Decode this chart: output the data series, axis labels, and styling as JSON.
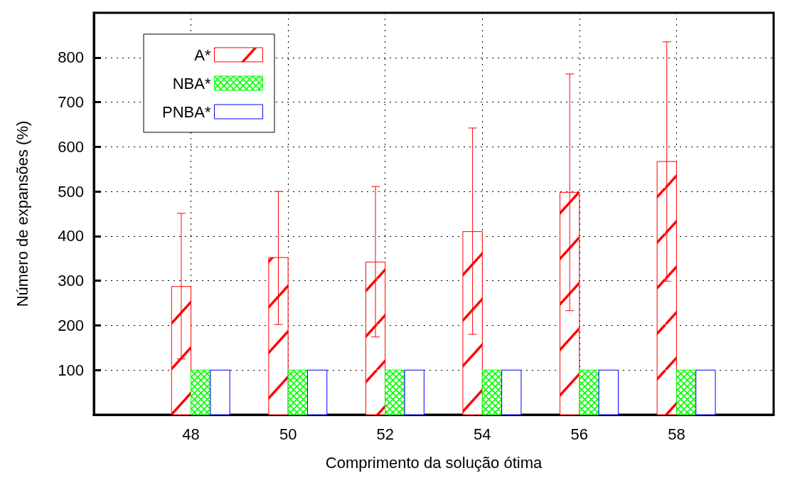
{
  "chart_data": {
    "type": "bar",
    "xlabel": "Comprimento da solução ótima",
    "ylabel": "Número de expansões (%)",
    "x": [
      48,
      50,
      52,
      54,
      56,
      58
    ],
    "xlim": [
      46,
      60
    ],
    "xticks": [
      48,
      50,
      52,
      54,
      56,
      58
    ],
    "ylim": [
      0,
      900
    ],
    "yticks": [
      100,
      200,
      300,
      400,
      500,
      600,
      700,
      800
    ],
    "grid": true,
    "legend": "top left",
    "series": [
      {
        "name": "A*",
        "color": "#ff0000",
        "values": [
          287,
          352,
          342,
          410,
          498,
          567
        ],
        "errors": [
          [
            125,
            451
          ],
          [
            202,
            500
          ],
          [
            174,
            511
          ],
          [
            180,
            642
          ],
          [
            233,
            763
          ],
          [
            299,
            835
          ]
        ]
      },
      {
        "name": "NBA*",
        "color": "#00ff00",
        "values": [
          100,
          100,
          100,
          100,
          100,
          100
        ]
      },
      {
        "name": "PNBA*",
        "color": "#0000ff",
        "values": [
          100,
          100,
          100,
          100,
          100,
          100
        ]
      }
    ]
  }
}
